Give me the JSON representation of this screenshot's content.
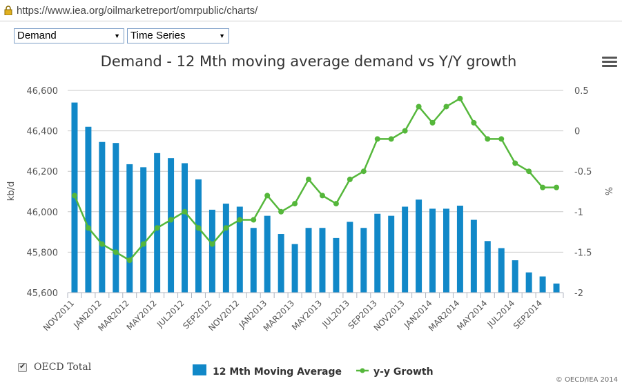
{
  "browser": {
    "url": "https://www.iea.org/oilmarketreport/omrpublic/charts/"
  },
  "controls": {
    "indicator": "Demand",
    "view": "Time Series"
  },
  "oecd_total_label": "OECD Total",
  "credit": "© OECD/IEA 2014",
  "colors": {
    "bar": "#1188c8",
    "line": "#55b73b",
    "grid": "#c8c8c8",
    "text": "#555555"
  },
  "chart_data": {
    "type": "bar+line",
    "title": "Demand - 12 Mth moving average demand vs Y/Y growth",
    "categories": [
      "NOV2011",
      "DEC2011",
      "JAN2012",
      "FEB2012",
      "MAR2012",
      "APR2012",
      "MAY2012",
      "JUN2012",
      "JUL2012",
      "AUG2012",
      "SEP2012",
      "OCT2012",
      "NOV2012",
      "DEC2012",
      "JAN2013",
      "FEB2013",
      "MAR2013",
      "APR2013",
      "MAY2013",
      "JUN2013",
      "JUL2013",
      "AUG2013",
      "SEP2013",
      "OCT2013",
      "NOV2013",
      "DEC2013",
      "JAN2014",
      "FEB2014",
      "MAR2014",
      "APR2014",
      "MAY2014",
      "JUN2014",
      "JUL2014",
      "AUG2014",
      "SEP2014",
      "OCT2014"
    ],
    "x_tick_labels": [
      "NOV2011",
      "JAN2012",
      "MAR2012",
      "MAY2012",
      "JUL2012",
      "SEP2012",
      "NOV2012",
      "JAN2013",
      "MAR2013",
      "MAY2013",
      "JUL2013",
      "SEP2013",
      "NOV2013",
      "JAN2014",
      "MAR2014",
      "MAY2014",
      "JUL2014",
      "SEP2014"
    ],
    "ylabel": "kb/d",
    "y2label": "%",
    "ylim": [
      45600,
      46600
    ],
    "yticks": [
      45600,
      45800,
      46000,
      46200,
      46400,
      46600
    ],
    "ytick_labels": [
      "45,600",
      "45,800",
      "46,000",
      "46,200",
      "46,400",
      "46,600"
    ],
    "y2lim": [
      -2,
      0.5
    ],
    "y2ticks": [
      -2,
      -1.5,
      -1,
      -0.5,
      0,
      0.5
    ],
    "y2tick_labels": [
      "-2",
      "-1.5",
      "-1",
      "-0.5",
      "0",
      "0.5"
    ],
    "grid": true,
    "legend_position": "bottom-center",
    "series": [
      {
        "name": "12 Mth Moving Average",
        "type": "bar",
        "axis": "left",
        "values": [
          46540,
          46420,
          46345,
          46340,
          46235,
          46220,
          46290,
          46265,
          46240,
          46160,
          46010,
          46040,
          46025,
          45920,
          45980,
          45890,
          45840,
          45920,
          45920,
          45870,
          45950,
          45920,
          45990,
          45980,
          46025,
          46060,
          46015,
          46015,
          46030,
          45960,
          45855,
          45820,
          45760,
          45700,
          45680,
          45645
        ]
      },
      {
        "name": "y-y Growth",
        "type": "line",
        "axis": "right",
        "values": [
          -0.8,
          -1.2,
          -1.4,
          -1.5,
          -1.6,
          -1.4,
          -1.2,
          -1.1,
          -1.0,
          -1.2,
          -1.4,
          -1.2,
          -1.1,
          -1.1,
          -0.8,
          -1.0,
          -0.9,
          -0.6,
          -0.8,
          -0.9,
          -0.6,
          -0.5,
          -0.1,
          -0.1,
          0.0,
          0.3,
          0.1,
          0.3,
          0.4,
          0.1,
          -0.1,
          -0.1,
          -0.4,
          -0.5,
          -0.7,
          -0.7
        ]
      }
    ]
  }
}
